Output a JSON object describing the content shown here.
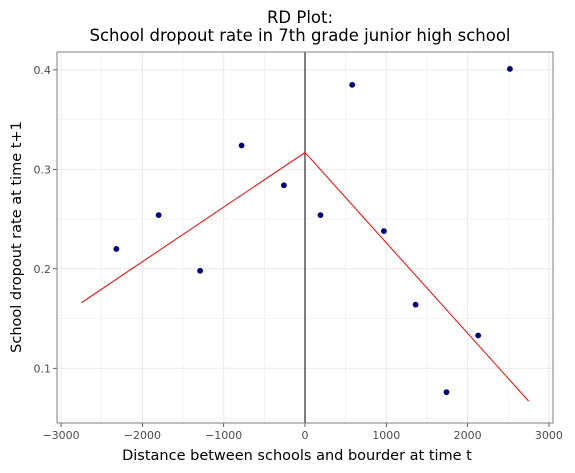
{
  "chart_data": {
    "type": "scatter",
    "title": "RD Plot:",
    "subtitle": "School dropout rate in 7th grade junior high school",
    "xlabel": "Distance between schools and bourder at time t",
    "ylabel": "School dropout rate at time t+1",
    "xlim": [
      -3050,
      3050
    ],
    "ylim": [
      0.045,
      0.418
    ],
    "x_ticks": [
      -3000,
      -2000,
      -1000,
      0,
      1000,
      2000,
      3000
    ],
    "x_tick_labels": [
      "−3000",
      "−2000",
      "−1000",
      "0",
      "1000",
      "2000",
      "3000"
    ],
    "y_ticks": [
      0.1,
      0.2,
      0.3,
      0.4
    ],
    "y_tick_labels": [
      "0.1",
      "0.2",
      "0.3",
      "0.4"
    ],
    "grid": true,
    "cutoff": 0,
    "points": [
      {
        "x": -2320,
        "y": 0.22
      },
      {
        "x": -1800,
        "y": 0.254
      },
      {
        "x": -1290,
        "y": 0.198
      },
      {
        "x": -780,
        "y": 0.324
      },
      {
        "x": -260,
        "y": 0.284
      },
      {
        "x": 190,
        "y": 0.254
      },
      {
        "x": 580,
        "y": 0.385
      },
      {
        "x": 970,
        "y": 0.238
      },
      {
        "x": 1360,
        "y": 0.164
      },
      {
        "x": 1740,
        "y": 0.076
      },
      {
        "x": 2130,
        "y": 0.133
      },
      {
        "x": 2520,
        "y": 0.401
      }
    ],
    "fit_lines": [
      {
        "name": "left",
        "x": [
          -2750,
          0
        ],
        "y": [
          0.166,
          0.317
        ]
      },
      {
        "name": "right",
        "x": [
          0,
          2750
        ],
        "y": [
          0.317,
          0.067
        ]
      }
    ],
    "colors": {
      "points": "#00007f",
      "fit": "#ff0000",
      "cutoff": "#000000",
      "grid": "#ebebeb",
      "panel_border": "#7f7f7f",
      "tick_label": "#4d4d4d"
    }
  }
}
